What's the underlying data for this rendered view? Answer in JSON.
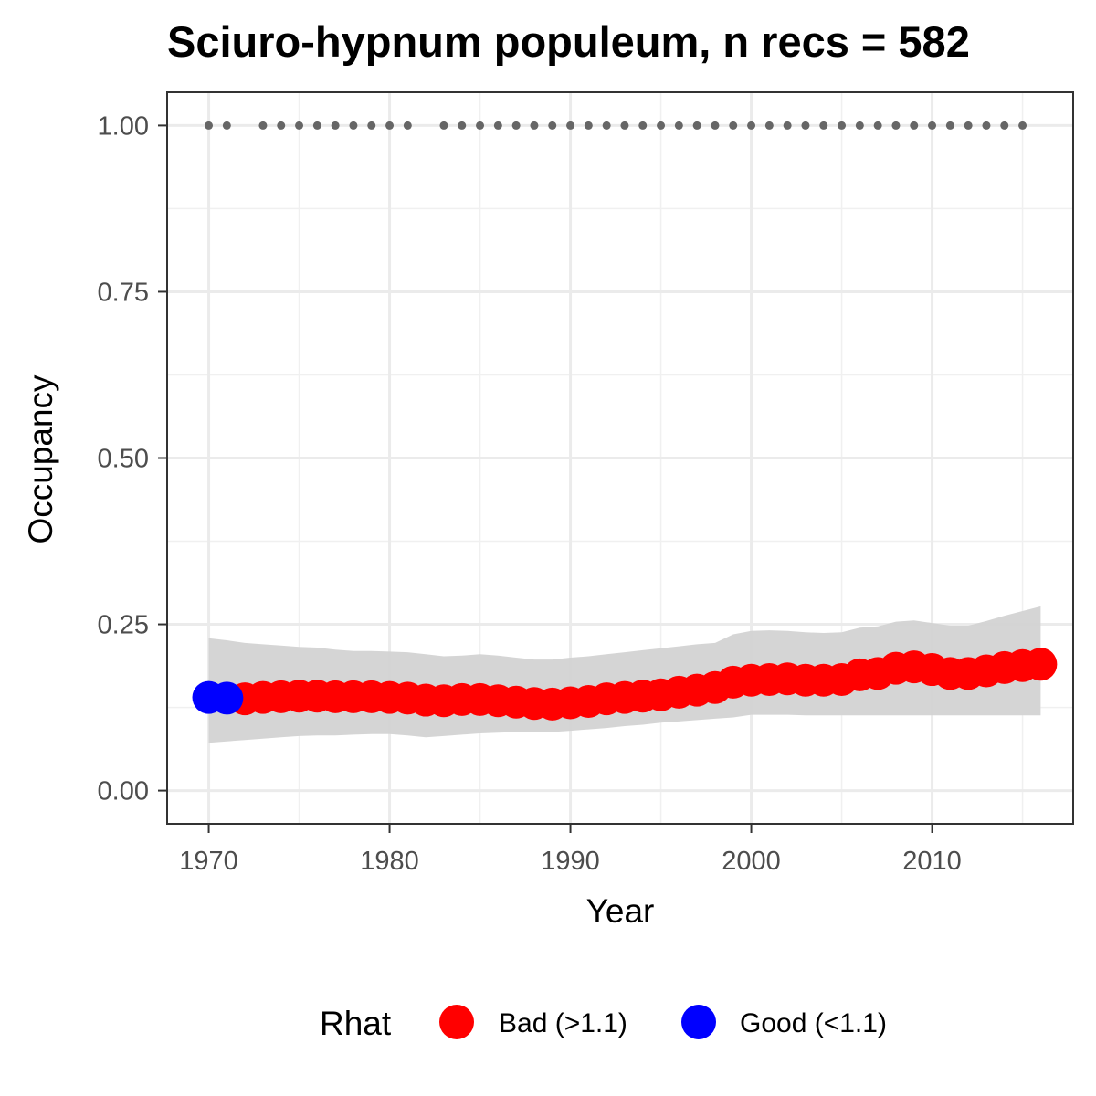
{
  "chart_data": {
    "type": "scatter",
    "title": "Sciuro-hypnum populeum, n recs = 582",
    "xlabel": "Year",
    "ylabel": "Occupancy",
    "xlim": [
      1967.7,
      2017.8
    ],
    "ylim": [
      -0.05,
      1.05
    ],
    "x_ticks": [
      1970,
      1980,
      1990,
      2000,
      2010
    ],
    "x_tick_labels": [
      "1970",
      "1980",
      "1990",
      "2000",
      "2010"
    ],
    "y_ticks": [
      0,
      0.25,
      0.5,
      0.75,
      1.0
    ],
    "y_tick_labels": [
      "0.00",
      "0.25",
      "0.50",
      "0.75",
      "1.00"
    ],
    "grid": true,
    "legend": {
      "title": "Rhat",
      "position": "bottom",
      "entries": [
        {
          "label": "Bad (>1.1)",
          "color": "#ff0000"
        },
        {
          "label": "Good (<1.1)",
          "color": "#0000ff"
        }
      ]
    },
    "colors": {
      "bad": "#ff0000",
      "good": "#0000ff",
      "ribbon": "#d3d3d3",
      "records": "#666666"
    },
    "series": [
      {
        "name": "Bad (>1.1)",
        "x": [
          1972,
          1973,
          1974,
          1975,
          1976,
          1977,
          1978,
          1979,
          1980,
          1981,
          1982,
          1983,
          1984,
          1985,
          1986,
          1987,
          1988,
          1989,
          1990,
          1991,
          1992,
          1993,
          1994,
          1995,
          1996,
          1997,
          1998,
          1999,
          2000,
          2001,
          2002,
          2003,
          2004,
          2005,
          2006,
          2007,
          2008,
          2009,
          2010,
          2011,
          2012,
          2013,
          2014,
          2015,
          2016
        ],
        "values": [
          0.138,
          0.14,
          0.141,
          0.142,
          0.142,
          0.141,
          0.141,
          0.141,
          0.14,
          0.139,
          0.136,
          0.135,
          0.137,
          0.137,
          0.135,
          0.133,
          0.131,
          0.13,
          0.132,
          0.134,
          0.138,
          0.14,
          0.142,
          0.144,
          0.148,
          0.151,
          0.155,
          0.163,
          0.166,
          0.167,
          0.168,
          0.166,
          0.166,
          0.167,
          0.174,
          0.176,
          0.184,
          0.186,
          0.182,
          0.176,
          0.176,
          0.18,
          0.185,
          0.188,
          0.19
        ]
      },
      {
        "name": "Good (<1.1)",
        "x": [
          1970,
          1971
        ],
        "values": [
          0.14,
          0.139
        ]
      }
    ],
    "ribbon": {
      "x": [
        1970,
        1971,
        1972,
        1973,
        1974,
        1975,
        1976,
        1977,
        1978,
        1979,
        1980,
        1981,
        1982,
        1983,
        1984,
        1985,
        1986,
        1987,
        1988,
        1989,
        1990,
        1991,
        1992,
        1993,
        1994,
        1995,
        1996,
        1997,
        1998,
        1999,
        2000,
        2001,
        2002,
        2003,
        2004,
        2005,
        2006,
        2007,
        2008,
        2009,
        2010,
        2011,
        2012,
        2013,
        2014,
        2015,
        2016
      ],
      "lower": [
        0.072,
        0.074,
        0.076,
        0.078,
        0.08,
        0.082,
        0.083,
        0.083,
        0.084,
        0.085,
        0.085,
        0.083,
        0.08,
        0.082,
        0.084,
        0.086,
        0.087,
        0.088,
        0.088,
        0.088,
        0.09,
        0.092,
        0.094,
        0.097,
        0.099,
        0.102,
        0.104,
        0.106,
        0.108,
        0.11,
        0.114,
        0.114,
        0.114,
        0.113,
        0.113,
        0.113,
        0.113,
        0.113,
        0.113,
        0.113,
        0.113,
        0.113,
        0.113,
        0.113,
        0.113,
        0.113,
        0.113
      ],
      "upper": [
        0.229,
        0.226,
        0.222,
        0.22,
        0.218,
        0.216,
        0.215,
        0.212,
        0.21,
        0.21,
        0.209,
        0.208,
        0.205,
        0.202,
        0.203,
        0.205,
        0.203,
        0.2,
        0.197,
        0.197,
        0.2,
        0.202,
        0.205,
        0.208,
        0.211,
        0.214,
        0.217,
        0.22,
        0.222,
        0.235,
        0.24,
        0.241,
        0.24,
        0.238,
        0.237,
        0.238,
        0.245,
        0.247,
        0.254,
        0.256,
        0.252,
        0.248,
        0.248,
        0.255,
        0.263,
        0.27,
        0.277
      ]
    },
    "records": {
      "y": 1.0,
      "x": [
        1970,
        1971,
        1973,
        1974,
        1975,
        1976,
        1977,
        1978,
        1979,
        1980,
        1981,
        1983,
        1984,
        1985,
        1986,
        1987,
        1988,
        1989,
        1990,
        1991,
        1992,
        1993,
        1994,
        1995,
        1996,
        1997,
        1998,
        1999,
        2000,
        2001,
        2002,
        2003,
        2004,
        2005,
        2006,
        2007,
        2008,
        2009,
        2010,
        2011,
        2012,
        2013,
        2014,
        2015
      ]
    }
  }
}
